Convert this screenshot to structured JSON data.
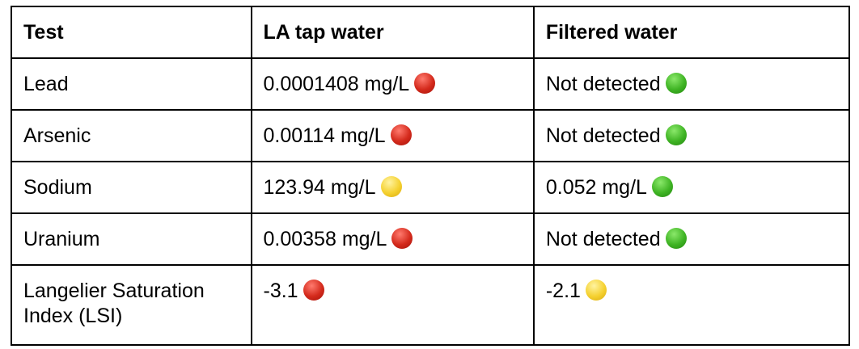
{
  "headers": [
    "Test",
    "LA tap water",
    "Filtered water"
  ],
  "rows": [
    {
      "test": "Lead",
      "tap": "0.0001408 mg/L",
      "tap_status": "red",
      "filtered": "Not detected",
      "filtered_status": "green"
    },
    {
      "test": "Arsenic",
      "tap": "0.00114 mg/L",
      "tap_status": "red",
      "filtered": "Not detected",
      "filtered_status": "green"
    },
    {
      "test": "Sodium",
      "tap": "123.94 mg/L",
      "tap_status": "yellow",
      "filtered": "0.052 mg/L",
      "filtered_status": "green"
    },
    {
      "test": "Uranium",
      "tap": "0.00358 mg/L",
      "tap_status": "red",
      "filtered": "Not detected",
      "filtered_status": "green"
    },
    {
      "test": "Langelier Saturation Index (LSI)",
      "tap": "-3.1",
      "tap_status": "red",
      "filtered": "-2.1",
      "filtered_status": "yellow"
    }
  ]
}
